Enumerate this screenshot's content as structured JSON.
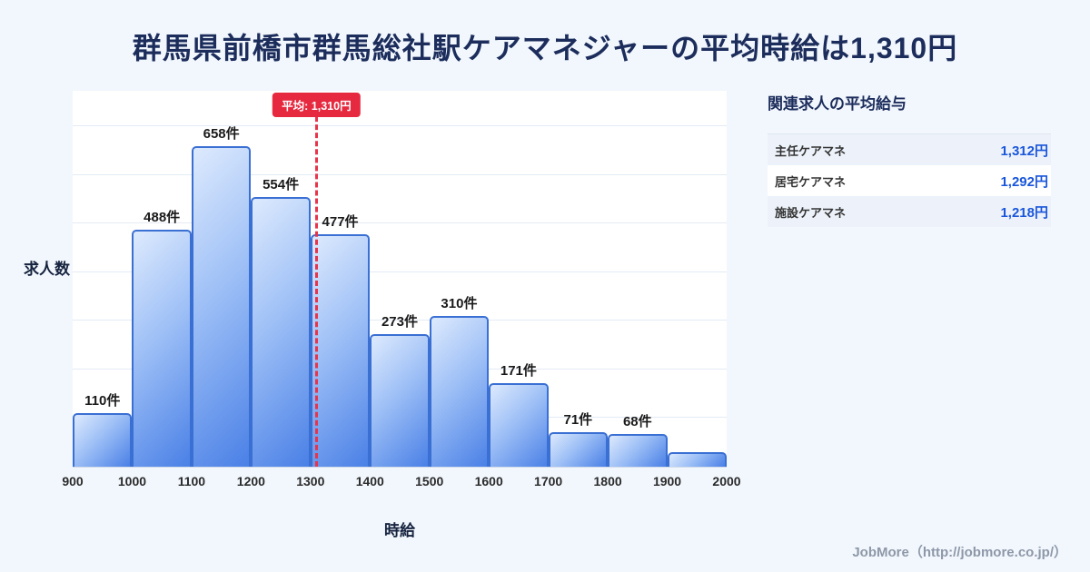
{
  "page": {
    "title": "群馬県前橋市群馬総社駅ケアマネジャーの平均時給は1,310円",
    "footer": "JobMore（http://jobmore.co.jp/）",
    "background_color": "#f2f7fd",
    "accent_red": "#e6293f",
    "value_blue": "#1a56db",
    "bar_border_blue": "#3a6fd3"
  },
  "chart_data": {
    "type": "bar",
    "title": "群馬県前橋市群馬総社駅ケアマネジャーの平均時給は1,310円",
    "xlabel": "時給",
    "ylabel": "求人数",
    "xlim": [
      900,
      2000
    ],
    "ylim": [
      0,
      700
    ],
    "grid": true,
    "legend": false,
    "x_ticks": [
      900,
      1000,
      1100,
      1200,
      1300,
      1400,
      1500,
      1600,
      1700,
      1800,
      1900,
      2000
    ],
    "bins": [
      {
        "range": [
          900,
          1000
        ],
        "count": 110,
        "label": "110件"
      },
      {
        "range": [
          1000,
          1100
        ],
        "count": 488,
        "label": "488件"
      },
      {
        "range": [
          1100,
          1200
        ],
        "count": 658,
        "label": "658件"
      },
      {
        "range": [
          1200,
          1300
        ],
        "count": 554,
        "label": "554件"
      },
      {
        "range": [
          1300,
          1400
        ],
        "count": 477,
        "label": "477件"
      },
      {
        "range": [
          1400,
          1500
        ],
        "count": 273,
        "label": "273件"
      },
      {
        "range": [
          1500,
          1600
        ],
        "count": 310,
        "label": "310件"
      },
      {
        "range": [
          1600,
          1700
        ],
        "count": 171,
        "label": "171件"
      },
      {
        "range": [
          1700,
          1800
        ],
        "count": 71,
        "label": "71件"
      },
      {
        "range": [
          1800,
          1900
        ],
        "count": 68,
        "label": "68件"
      },
      {
        "range": [
          1900,
          2000
        ],
        "count": 30,
        "label": ""
      }
    ],
    "average": {
      "value": 1310,
      "label": "平均: 1,310円"
    }
  },
  "side_panel": {
    "heading": "関連求人の平均給与",
    "rows": [
      {
        "name": "主任ケアマネ",
        "value": "1,312円"
      },
      {
        "name": "居宅ケアマネ",
        "value": "1,292円"
      },
      {
        "name": "施設ケアマネ",
        "value": "1,218円"
      }
    ]
  }
}
